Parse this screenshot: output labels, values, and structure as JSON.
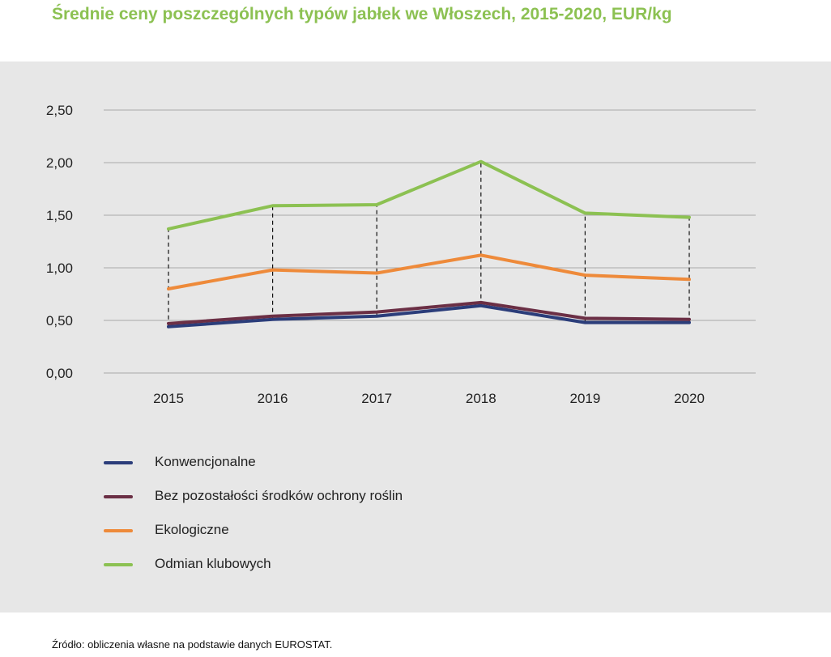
{
  "title": "Średnie ceny poszczególnych typów jabłek we Włoszech, 2015-2020, EUR/kg",
  "source": "Źródło: obliczenia własne na podstawie danych EUROSTAT.",
  "colors": {
    "title": "#8cc152",
    "panel": "#e7e7e7",
    "grid": "#a9a9a9",
    "konwencjonalne": "#2b3d7a",
    "bez_pozostalosci": "#6b2f45",
    "ekologiczne": "#ee8a3a",
    "klubowe": "#8cc152"
  },
  "chart_data": {
    "type": "line",
    "title": "Średnie ceny poszczególnych typów jabłek we Włoszech, 2015-2020, EUR/kg",
    "xlabel": "",
    "ylabel": "",
    "x": [
      "2015",
      "2016",
      "2017",
      "2018",
      "2019",
      "2020"
    ],
    "ylim": [
      0,
      2.5
    ],
    "yticks": [
      "0,00",
      "0,50",
      "1,00",
      "1,50",
      "2,00",
      "2,50"
    ],
    "grid": true,
    "legend_position": "bottom-left",
    "series": [
      {
        "name": "Konwencjonalne",
        "color": "#2b3d7a",
        "values": [
          0.44,
          0.51,
          0.54,
          0.64,
          0.48,
          0.48
        ]
      },
      {
        "name": "Bez pozostałości środków ochrony roślin",
        "color": "#6b2f45",
        "values": [
          0.47,
          0.54,
          0.58,
          0.67,
          0.52,
          0.51
        ]
      },
      {
        "name": "Ekologiczne",
        "color": "#ee8a3a",
        "values": [
          0.8,
          0.98,
          0.95,
          1.12,
          0.93,
          0.89
        ]
      },
      {
        "name": "Odmian klubowych",
        "color": "#8cc152",
        "values": [
          1.37,
          1.59,
          1.6,
          2.01,
          1.52,
          1.48
        ]
      }
    ]
  }
}
